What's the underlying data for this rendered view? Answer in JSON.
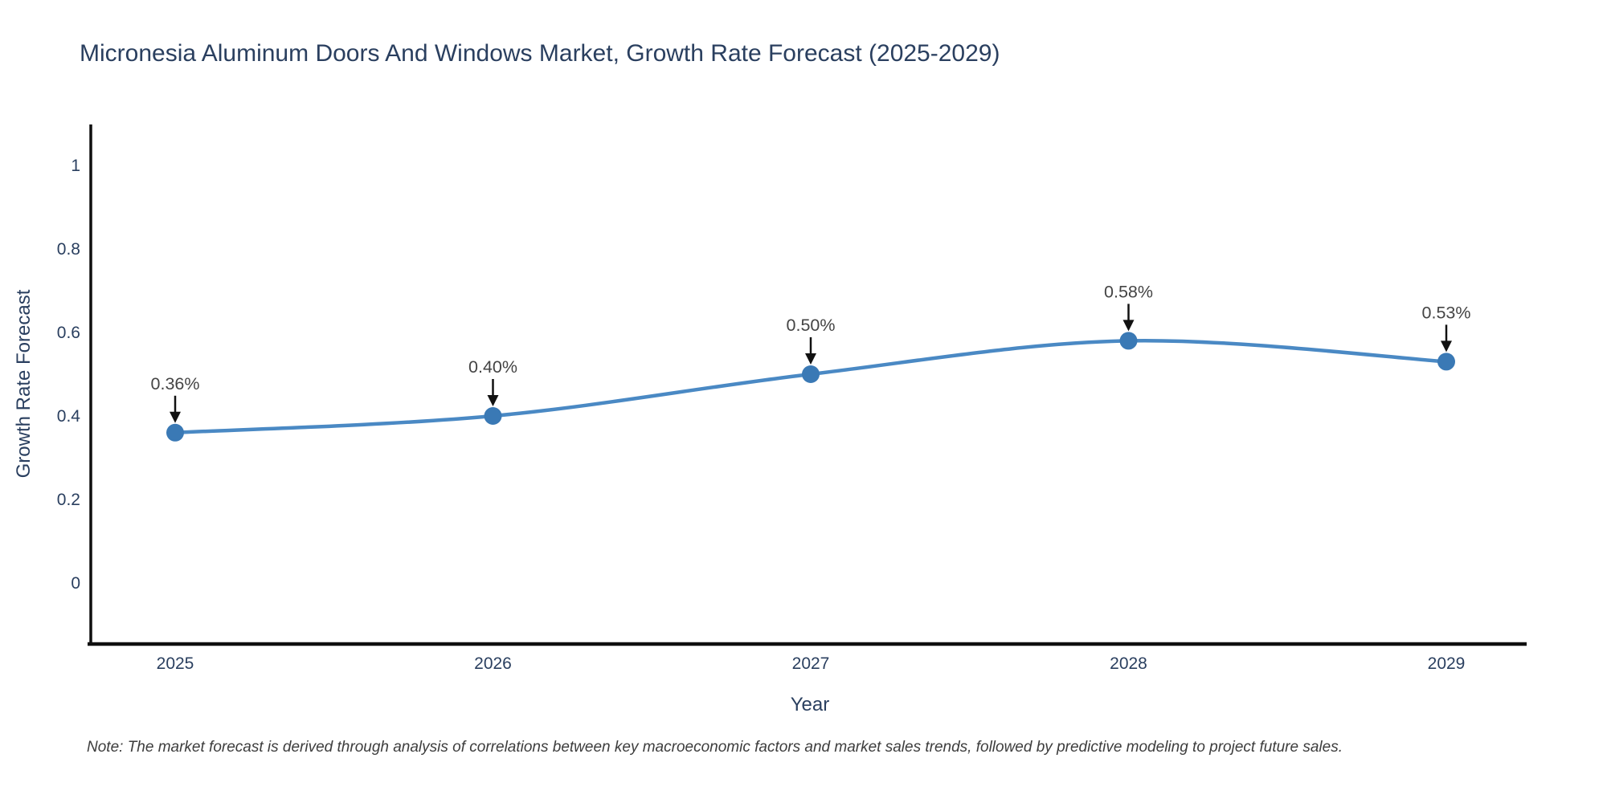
{
  "chart": {
    "title": "Micronesia Aluminum Doors And Windows Market, Growth Rate Forecast (2025-2029)",
    "xlabel": "Year",
    "ylabel": "Growth Rate Forecast"
  },
  "note": "Note: The market forecast is derived through analysis of correlations between key macroeconomic factors and market sales trends, followed by predictive modeling to project future sales.",
  "chart_data": {
    "type": "line",
    "title": "Micronesia Aluminum Doors And Windows Market, Growth Rate Forecast (2025-2029)",
    "xlabel": "Year",
    "ylabel": "Growth Rate Forecast",
    "x": [
      2025,
      2026,
      2027,
      2028,
      2029
    ],
    "series": [
      {
        "name": "Growth Rate Forecast",
        "values": [
          0.36,
          0.4,
          0.5,
          0.58,
          0.53
        ]
      }
    ],
    "point_labels": [
      "0.36%",
      "0.40%",
      "0.50%",
      "0.58%",
      "0.53%"
    ],
    "yticks": [
      0,
      0.2,
      0.4,
      0.6,
      0.8,
      1
    ],
    "ytick_labels": [
      "0",
      "0.2",
      "0.4",
      "0.6",
      "0.8",
      "1"
    ],
    "xtick_labels": [
      "2025",
      "2026",
      "2027",
      "2028",
      "2029"
    ],
    "ylim": [
      -0.146,
      1.098
    ],
    "grid": false,
    "legend": "none",
    "line_shape": "spline",
    "colors": {
      "line": "#4a89c4",
      "marker": "#3a79b5",
      "axis_line": "#0f0f0f",
      "arrow": "#111111",
      "tick_text": "#2a3f5f",
      "annotation_text": "#444444",
      "title_text": "#2a3f5f",
      "background": "#ffffff"
    }
  }
}
